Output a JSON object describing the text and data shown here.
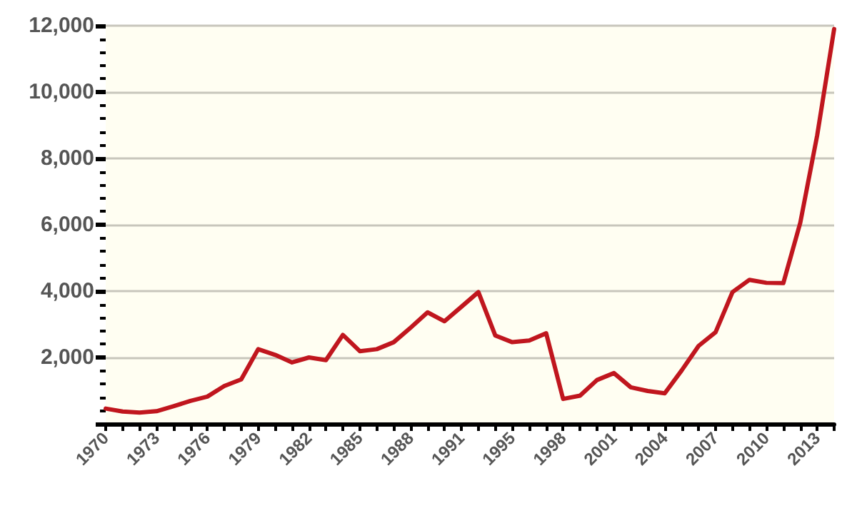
{
  "chart_data": {
    "type": "line",
    "categories": [
      "1970",
      null,
      null,
      "1973",
      null,
      null,
      "1976",
      null,
      null,
      "1979",
      null,
      null,
      "1982",
      null,
      null,
      "1985",
      null,
      null,
      "1988",
      null,
      null,
      "1991",
      null,
      null,
      "1995",
      null,
      null,
      "1998",
      null,
      null,
      "2001",
      null,
      null,
      "2004",
      null,
      null,
      "2007",
      null,
      null,
      "2010",
      null,
      null,
      "2013",
      null
    ],
    "series": [
      {
        "color": "#c0161e",
        "values": [
          460,
          370,
          340,
          380,
          530,
          690,
          820,
          1140,
          1340,
          2250,
          2080,
          1850,
          2000,
          1920,
          2680,
          2190,
          2250,
          2460,
          2900,
          3360,
          3090,
          3530,
          3970,
          2660,
          2460,
          2510,
          2730,
          750,
          850,
          1320,
          1530,
          1100,
          990,
          920,
          1610,
          2350,
          2760,
          3970,
          4340,
          4250,
          4240,
          6060,
          8700,
          11900
        ]
      }
    ],
    "ylim": [
      0,
      12000
    ],
    "yticks": [
      {
        "value": 0,
        "label": null
      },
      {
        "value": 400,
        "label": null
      },
      {
        "value": 800,
        "label": null
      },
      {
        "value": 1200,
        "label": null
      },
      {
        "value": 1600,
        "label": null
      },
      {
        "value": 2000,
        "label": "2,000"
      },
      {
        "value": 2400,
        "label": null
      },
      {
        "value": 2800,
        "label": null
      },
      {
        "value": 3200,
        "label": null
      },
      {
        "value": 3600,
        "label": null
      },
      {
        "value": 4000,
        "label": "4,000"
      },
      {
        "value": 4400,
        "label": null
      },
      {
        "value": 4800,
        "label": null
      },
      {
        "value": 5200,
        "label": null
      },
      {
        "value": 5600,
        "label": null
      },
      {
        "value": 6000,
        "label": "6,000"
      },
      {
        "value": 6400,
        "label": null
      },
      {
        "value": 6800,
        "label": null
      },
      {
        "value": 7200,
        "label": null
      },
      {
        "value": 7600,
        "label": null
      },
      {
        "value": 8000,
        "label": "8,000"
      },
      {
        "value": 8400,
        "label": null
      },
      {
        "value": 8800,
        "label": null
      },
      {
        "value": 9200,
        "label": null
      },
      {
        "value": 9600,
        "label": null
      },
      {
        "value": 10000,
        "label": "10,000"
      },
      {
        "value": 10400,
        "label": null
      },
      {
        "value": 10800,
        "label": null
      },
      {
        "value": 11200,
        "label": null
      },
      {
        "value": 11600,
        "label": null
      },
      {
        "value": 12000,
        "label": "12,000"
      }
    ],
    "grid": "y",
    "marker": "none",
    "line_style": "solid"
  }
}
